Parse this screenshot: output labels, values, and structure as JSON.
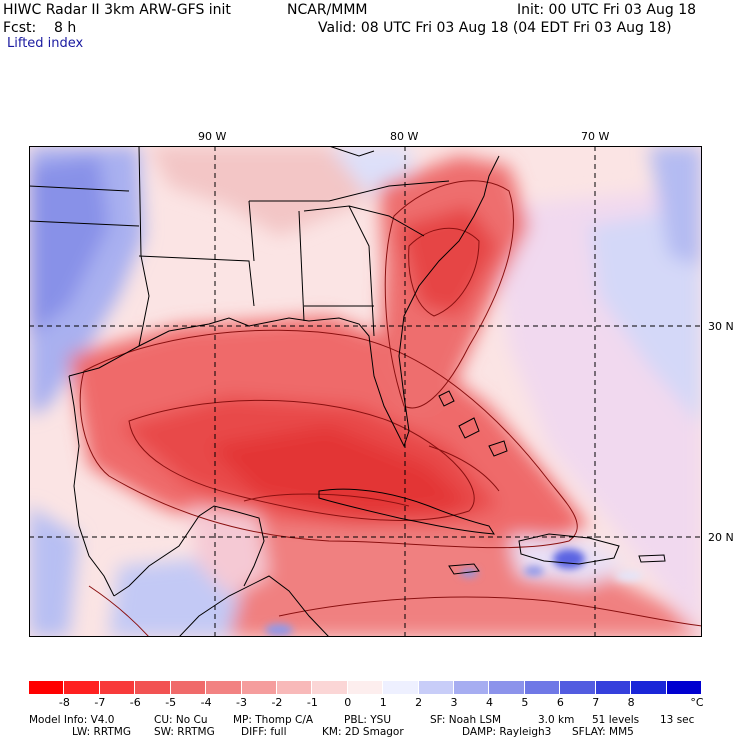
{
  "header": {
    "title_left": "HIWC Radar II 3km ARW-GFS init",
    "title_center": "NCAR/MMM",
    "init": "Init: 00 UTC Fri 03 Aug 18",
    "fcst": "Fcst:    8 h",
    "valid": "Valid: 08 UTC Fri 03 Aug 18 (04 EDT Fri 03 Aug 18)",
    "field": "Lifted index"
  },
  "map": {
    "lon_labels": [
      "90 W",
      "80 W",
      "70 W"
    ],
    "lat_labels": [
      "30 N",
      "20 N"
    ],
    "colors": {
      "strong_red": "#e63a3a",
      "light_red": "#f59a9a",
      "pale_pink": "#fbd6d6",
      "pale_blue": "#c9cff5",
      "mid_blue": "#8e98ea",
      "strong_blue": "#4a55e0",
      "boundary": "#000000",
      "contour": "#8a1010"
    }
  },
  "colorbar": {
    "labels": [
      "-8",
      "-7",
      "-6",
      "-5",
      "-4",
      "-3",
      "-2",
      "-1",
      "0",
      "1",
      "2",
      "3",
      "4",
      "5",
      "6",
      "7",
      "8"
    ],
    "unit": "°C",
    "colors": [
      "#ff0000",
      "#ff2020",
      "#f83a3a",
      "#f25252",
      "#f06a6a",
      "#f28282",
      "#f59d9d",
      "#f8b9b9",
      "#fbd6d6",
      "#fdeeee",
      "#eef0ff",
      "#c8cdf8",
      "#a6adf1",
      "#8c93eb",
      "#6f78e6",
      "#525ce0",
      "#3540dc",
      "#1a26d8",
      "#0000d0"
    ]
  },
  "footer": {
    "line1_a": "Model Info: V4.0",
    "line1_b": "CU: No Cu",
    "line1_c": "MP: Thomp C/A",
    "line1_d": "PBL: YSU",
    "line1_e": "SF: Noah LSM",
    "line1_f": "3.0 km",
    "line1_g": "51 levels",
    "line1_h": "13 sec",
    "line2_a": "LW: RRTMG",
    "line2_b": "SW: RRTMG",
    "line2_c": "DIFF: full",
    "line2_d": "KM: 2D Smagor",
    "line2_e": "DAMP: Rayleigh3",
    "line2_f": "SFLAY: MM5"
  }
}
